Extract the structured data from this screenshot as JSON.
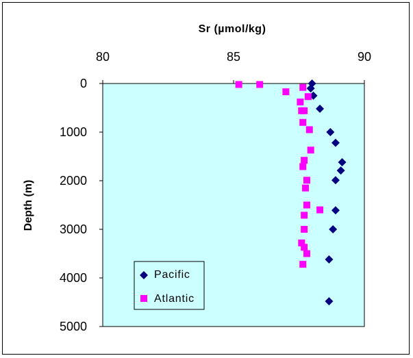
{
  "chart_data": {
    "type": "scatter",
    "title": "",
    "xlabel": "Sr (µmol/kg)",
    "ylabel": "Depth (m)",
    "xlim": [
      80,
      90
    ],
    "ylim": [
      0,
      5000
    ],
    "y_inverted": true,
    "x_axis_position": "top",
    "x_ticks": [
      "80",
      "85",
      "90"
    ],
    "y_ticks": [
      "0",
      "1000",
      "2000",
      "3000",
      "4000",
      "5000"
    ],
    "plot_background": "#ccffff",
    "grid": false,
    "legend_position": "bottom-left",
    "series": [
      {
        "name": "Pacific",
        "marker": "diamond",
        "color": "#000080",
        "points": [
          [
            88.0,
            0
          ],
          [
            87.95,
            100
          ],
          [
            88.05,
            250
          ],
          [
            88.3,
            520
          ],
          [
            88.7,
            1000
          ],
          [
            88.9,
            1220
          ],
          [
            89.15,
            1620
          ],
          [
            89.1,
            1790
          ],
          [
            88.9,
            1990
          ],
          [
            88.9,
            2610
          ],
          [
            88.8,
            3000
          ],
          [
            88.65,
            3620
          ],
          [
            88.65,
            4480
          ]
        ]
      },
      {
        "name": "Atlantic",
        "marker": "square",
        "color": "#ff00ff",
        "points": [
          [
            85.2,
            20
          ],
          [
            86.0,
            20
          ],
          [
            87.0,
            170
          ],
          [
            87.65,
            80
          ],
          [
            87.85,
            270
          ],
          [
            87.55,
            380
          ],
          [
            87.6,
            560
          ],
          [
            87.7,
            560
          ],
          [
            87.65,
            800
          ],
          [
            87.9,
            950
          ],
          [
            87.95,
            1370
          ],
          [
            87.7,
            1580
          ],
          [
            87.65,
            1710
          ],
          [
            87.8,
            1990
          ],
          [
            87.75,
            2150
          ],
          [
            87.8,
            2500
          ],
          [
            88.3,
            2600
          ],
          [
            87.7,
            2710
          ],
          [
            87.7,
            3000
          ],
          [
            87.6,
            3280
          ],
          [
            87.7,
            3370
          ],
          [
            87.8,
            3500
          ],
          [
            87.65,
            3720
          ]
        ]
      }
    ]
  }
}
